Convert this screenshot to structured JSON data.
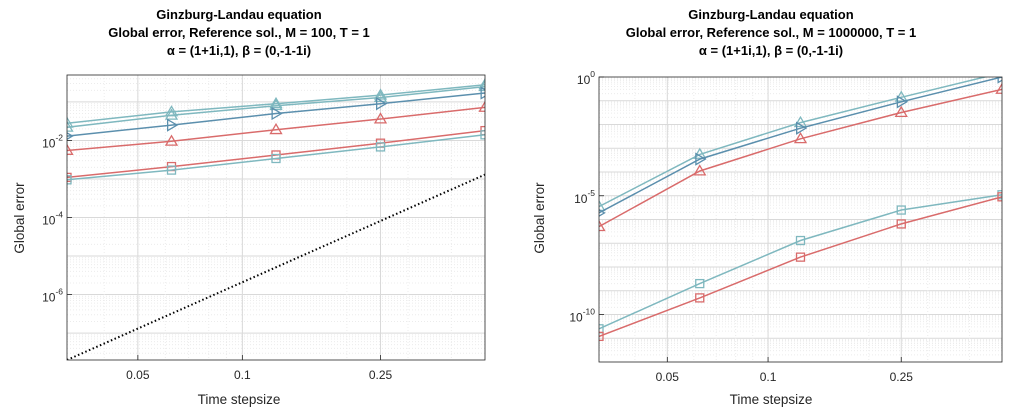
{
  "chart_data": [
    {
      "type": "line",
      "title_lines": [
        "Ginzburg-Landau equation",
        "Global error, Reference sol., M = 100, T = 1",
        "α = (1+1i,1), β = (0,-1-1i)"
      ],
      "xlabel": "Time stepsize",
      "ylabel": "Global error",
      "xscale": "log",
      "yscale": "log",
      "xlim": [
        0.03125,
        0.5
      ],
      "ylim": [
        2e-08,
        0.5
      ],
      "xticks": [
        {
          "v": 0.05,
          "label": "0.05"
        },
        {
          "v": 0.1,
          "label": "0.1"
        },
        {
          "v": 0.25,
          "label": "0.25"
        }
      ],
      "yticks": [
        {
          "v": 0.01,
          "base": "10",
          "exp": "-2"
        },
        {
          "v": 0.0001,
          "base": "10",
          "exp": "-4"
        },
        {
          "v": 1e-06,
          "base": "10",
          "exp": "-6"
        }
      ],
      "grid": true,
      "series": [
        {
          "color": "#7fb8bf",
          "marker": "triangle-up",
          "style": "solid",
          "x": [
            0.03125,
            0.0625,
            0.125,
            0.25,
            0.5
          ],
          "y": [
            0.028,
            0.055,
            0.09,
            0.15,
            0.28
          ]
        },
        {
          "color": "#7fb8bf",
          "marker": "triangle-up",
          "style": "solid",
          "x": [
            0.03125,
            0.0625,
            0.125,
            0.25,
            0.5
          ],
          "y": [
            0.022,
            0.045,
            0.08,
            0.13,
            0.25
          ]
        },
        {
          "color": "#5b8fad",
          "marker": "triangle-right",
          "style": "solid",
          "x": [
            0.03125,
            0.0625,
            0.125,
            0.25,
            0.5
          ],
          "y": [
            0.013,
            0.025,
            0.05,
            0.09,
            0.17
          ]
        },
        {
          "color": "#d96b6b",
          "marker": "triangle-up",
          "style": "solid",
          "x": [
            0.03125,
            0.0625,
            0.125,
            0.25,
            0.5
          ],
          "y": [
            0.0055,
            0.0095,
            0.019,
            0.036,
            0.072
          ]
        },
        {
          "color": "#d96b6b",
          "marker": "square",
          "style": "solid",
          "x": [
            0.03125,
            0.0625,
            0.125,
            0.25,
            0.5
          ],
          "y": [
            0.0011,
            0.0021,
            0.0042,
            0.0085,
            0.018
          ]
        },
        {
          "color": "#7fb8bf",
          "marker": "square",
          "style": "solid",
          "x": [
            0.03125,
            0.0625,
            0.125,
            0.25,
            0.5
          ],
          "y": [
            0.00095,
            0.0017,
            0.0034,
            0.0068,
            0.014
          ]
        },
        {
          "color": "#000000",
          "marker": "none",
          "style": "dotted",
          "x": [
            0.03125,
            0.5
          ],
          "y": [
            2e-08,
            0.0013
          ]
        }
      ]
    },
    {
      "type": "line",
      "title_lines": [
        "Ginzburg-Landau equation",
        "Global error, Reference sol., M = 1000000, T = 1",
        "α = (1+1i,1), β = (0,-1-1i)"
      ],
      "xlabel": "Time stepsize",
      "ylabel": "Global error",
      "xscale": "log",
      "yscale": "log",
      "xlim": [
        0.03125,
        0.5
      ],
      "ylim": [
        1e-12,
        1
      ],
      "xticks": [
        {
          "v": 0.05,
          "label": "0.05"
        },
        {
          "v": 0.1,
          "label": "0.1"
        },
        {
          "v": 0.25,
          "label": "0.25"
        }
      ],
      "yticks": [
        {
          "v": 1,
          "base": "10",
          "exp": "0"
        },
        {
          "v": 1e-05,
          "base": "10",
          "exp": "-5"
        },
        {
          "v": 1e-10,
          "base": "10",
          "exp": "-10"
        }
      ],
      "grid": true,
      "series": [
        {
          "color": "#7fb8bf",
          "marker": "triangle-up",
          "style": "solid",
          "x": [
            0.03125,
            0.0625,
            0.125,
            0.25,
            0.5
          ],
          "y": [
            3.5e-06,
            0.00055,
            0.012,
            0.14,
            1.5
          ]
        },
        {
          "color": "#5b8fad",
          "marker": "triangle-right",
          "style": "solid",
          "x": [
            0.03125,
            0.0625,
            0.125,
            0.25,
            0.5
          ],
          "y": [
            1.9e-06,
            0.00035,
            0.007,
            0.09,
            1.0
          ]
        },
        {
          "color": "#d96b6b",
          "marker": "triangle-up",
          "style": "solid",
          "x": [
            0.03125,
            0.0625,
            0.125,
            0.25,
            0.5
          ],
          "y": [
            5e-07,
            0.00011,
            0.0025,
            0.032,
            0.3
          ]
        },
        {
          "color": "#7fb8bf",
          "marker": "square",
          "style": "solid",
          "x": [
            0.03125,
            0.0625,
            0.125,
            0.25,
            0.5
          ],
          "y": [
            2.5e-11,
            2e-09,
            1.3e-07,
            2.5e-06,
            1.1e-05
          ]
        },
        {
          "color": "#d96b6b",
          "marker": "square",
          "style": "solid",
          "x": [
            0.03125,
            0.0625,
            0.125,
            0.25,
            0.5
          ],
          "y": [
            1.2e-11,
            5e-10,
            2.6e-08,
            6.5e-07,
            9e-06
          ]
        }
      ]
    }
  ]
}
